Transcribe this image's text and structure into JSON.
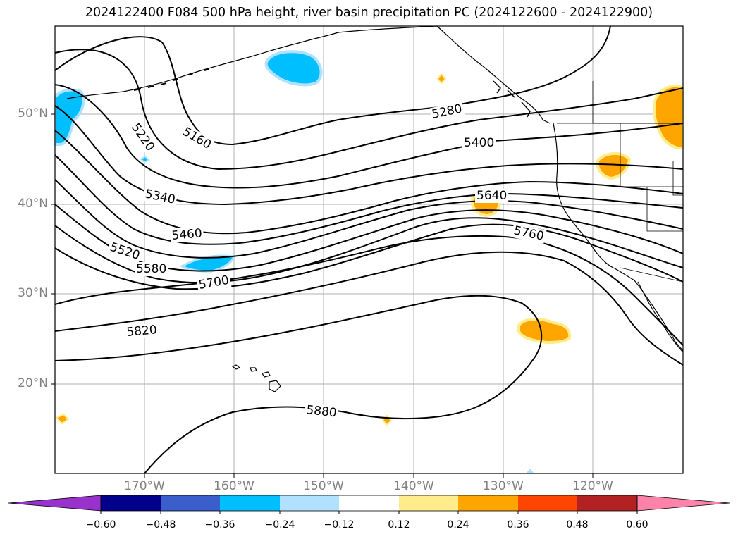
{
  "title": "2024122400 F084 500 hPa height, river basin precipitation PC (2024122600 - 2024122900)",
  "lat_labels": [
    "50°N",
    "40°N",
    "30°N",
    "20°N"
  ],
  "lon_labels": [
    "170°W",
    "160°W",
    "150°W",
    "140°W",
    "130°W",
    "120°W"
  ],
  "contour_labels": [
    "5160",
    "5220",
    "5280",
    "5340",
    "5400",
    "5460",
    "5520",
    "5580",
    "5640",
    "5700",
    "5760",
    "5820",
    "5880"
  ],
  "colorbar": {
    "ticks": [
      "−0.60",
      "−0.48",
      "−0.36",
      "−0.24",
      "−0.12",
      "0.12",
      "0.24",
      "0.36",
      "0.48",
      "0.60"
    ],
    "colors": [
      "#9932cc",
      "#00008b",
      "#3a5fcd",
      "#00bfff",
      "#b0e2ff",
      "#ffffff",
      "#ffec8b",
      "#ffa500",
      "#ff4500",
      "#b22222",
      "#ff82ab"
    ]
  },
  "colors": {
    "frame": "#000000",
    "grid": "#b0b0b0",
    "coast": "#000000",
    "tick_label": "#808080"
  }
}
